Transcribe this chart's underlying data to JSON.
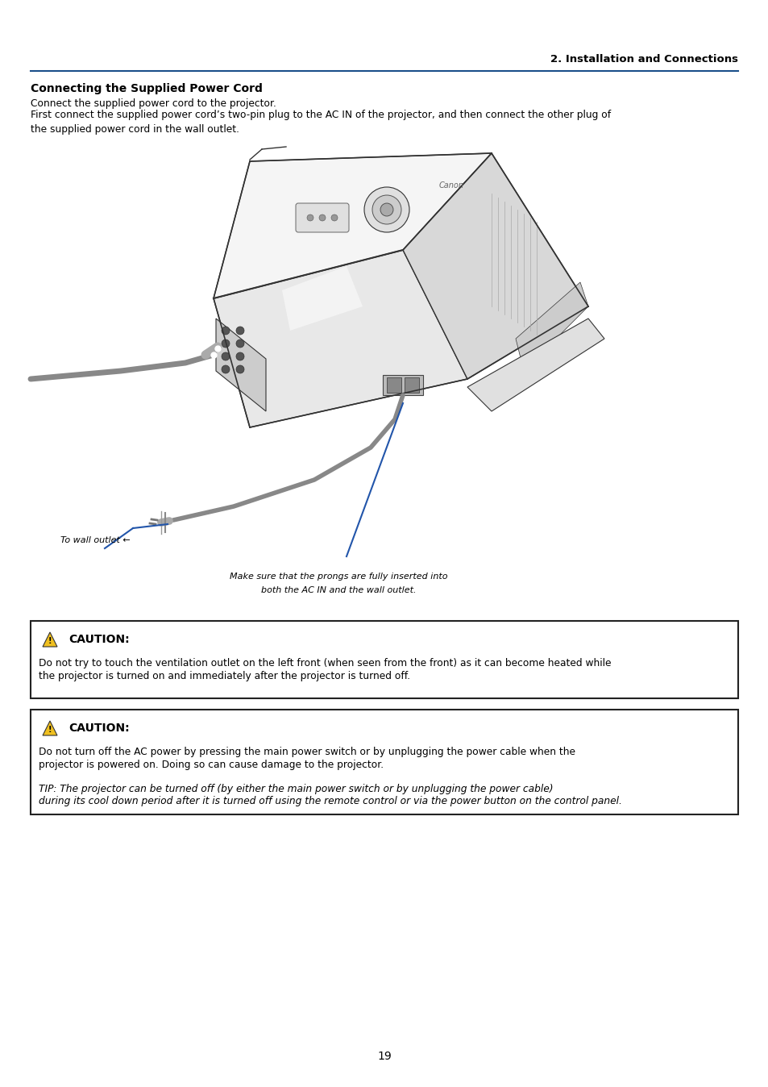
{
  "page_width": 9.54,
  "page_height": 13.48,
  "bg_color": "#ffffff",
  "header_line_color": "#1a4f8a",
  "header_text": "2. Installation and Connections",
  "section_title": "Connecting the Supplied Power Cord",
  "body_text_1": "Connect the supplied power cord to the projector.",
  "body_text_2": "First connect the supplied power cord’s two-pin plug to the AC IN of the projector, and then connect the other plug of\nthe supplied power cord in the wall outlet.",
  "annotation_wall": "To wall outlet ←",
  "annotation_bottom_line1": "Make sure that the prongs are fully inserted into",
  "annotation_bottom_line2": "both the AC IN and the wall outlet.",
  "caution1_title": "CAUTION:",
  "caution1_text_line1": "Do not try to touch the ventilation outlet on the left front (when seen from the front) as it can become heated while",
  "caution1_text_line2": "the projector is turned on and immediately after the projector is turned off.",
  "caution2_title": "CAUTION:",
  "caution2_text_line1": "Do not turn off the AC power by pressing the main power switch or by unplugging the power cable when the",
  "caution2_text_line2": "projector is powered on. Doing so can cause damage to the projector.",
  "caution2_tip_line1": "TIP: The projector can be turned off (by either the main power switch or by unplugging the power cable)",
  "caution2_tip_line2": "during its cool down period after it is turned off using the remote control or via the power button on the control panel.",
  "page_number": "19",
  "blue_line_color": "#1a4f8a",
  "arrow_line_color": "#2255aa",
  "box_border_color": "#222222",
  "caution_yellow": "#f0c020",
  "projector_edge": "#333333",
  "projector_fill": "#f5f5f5",
  "projector_shadow": "#dddddd",
  "cord_color": "#888888"
}
